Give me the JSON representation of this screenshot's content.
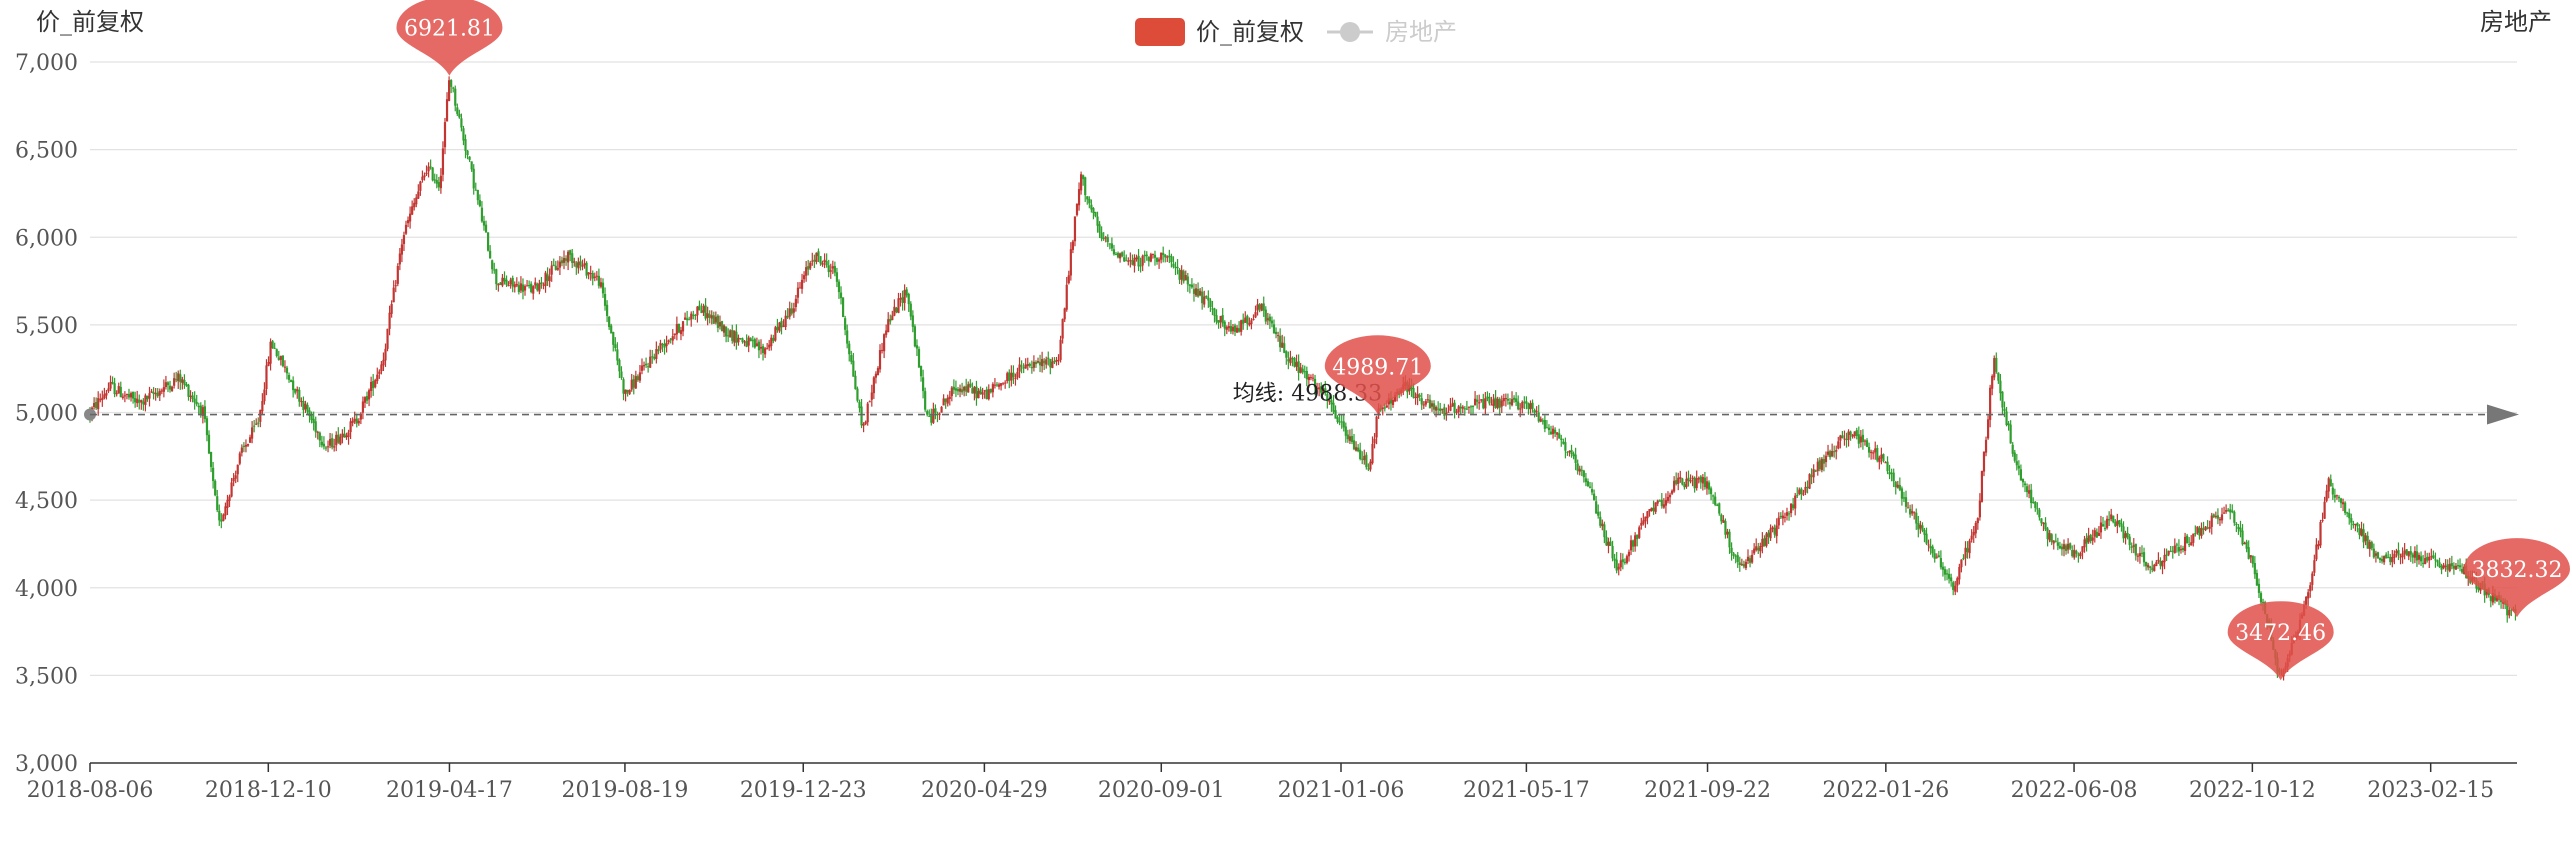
{
  "chart_data": {
    "type": "candlestick",
    "title": "",
    "y_axis_name_left": "价_前复权",
    "y_axis_name_right": "房地产",
    "legend": [
      {
        "name": "价_前复权",
        "color": "#dd4b39",
        "active": true
      },
      {
        "name": "房地产",
        "color": "#cccccc",
        "active": false
      }
    ],
    "legend_placement": "top-center",
    "ylim": [
      3000,
      7000
    ],
    "y_ticks": [
      3000,
      3500,
      4000,
      4500,
      5000,
      5500,
      6000,
      6500,
      7000
    ],
    "y_tick_labels": [
      "3,000",
      "3,500",
      "4,000",
      "4,500",
      "5,000",
      "5,500",
      "6,000",
      "6,500",
      "7,000"
    ],
    "x_tick_labels": [
      "2018-08-06",
      "2018-12-10",
      "2019-04-17",
      "2019-08-19",
      "2019-12-23",
      "2020-04-29",
      "2020-09-01",
      "2021-01-06",
      "2021-05-17",
      "2021-09-22",
      "2022-01-26",
      "2022-06-08",
      "2022-10-12",
      "2023-02-15"
    ],
    "x_range": [
      "2018-08-06",
      "2023-04-17"
    ],
    "grid_horizontal": true,
    "up_color": "#c23531",
    "down_color": "#2f9e2f",
    "mark_points": [
      {
        "label": "6921.81",
        "date": "2019-04-17",
        "value": 6921.81
      },
      {
        "label": "4989.71",
        "date": "2021-02-01",
        "value": 4989.71
      },
      {
        "label": "3472.46",
        "date": "2022-11-01",
        "value": 3472.46
      },
      {
        "label": "3832.32",
        "date": "2023-04-17",
        "value": 3832.32
      }
    ],
    "mark_line": {
      "label": "均线: 4988.33",
      "value": 4988.33
    },
    "anchors": [
      [
        "2018-08-06",
        5000
      ],
      [
        "2018-08-20",
        5150
      ],
      [
        "2018-09-10",
        5050
      ],
      [
        "2018-10-08",
        5200
      ],
      [
        "2018-10-25",
        5000
      ],
      [
        "2018-11-05",
        4350
      ],
      [
        "2018-11-20",
        4750
      ],
      [
        "2018-12-03",
        4950
      ],
      [
        "2018-12-12",
        5400
      ],
      [
        "2018-12-28",
        5150
      ],
      [
        "2019-01-20",
        4800
      ],
      [
        "2019-02-10",
        4950
      ],
      [
        "2019-03-01",
        5300
      ],
      [
        "2019-03-15",
        6000
      ],
      [
        "2019-04-01",
        6400
      ],
      [
        "2019-04-10",
        6300
      ],
      [
        "2019-04-17",
        6920
      ],
      [
        "2019-04-26",
        6600
      ],
      [
        "2019-05-10",
        6100
      ],
      [
        "2019-05-20",
        5750
      ],
      [
        "2019-06-15",
        5700
      ],
      [
        "2019-07-10",
        5900
      ],
      [
        "2019-08-01",
        5750
      ],
      [
        "2019-08-19",
        5100
      ],
      [
        "2019-09-10",
        5350
      ],
      [
        "2019-10-10",
        5600
      ],
      [
        "2019-11-01",
        5450
      ],
      [
        "2019-11-25",
        5350
      ],
      [
        "2019-12-15",
        5600
      ],
      [
        "2019-12-30",
        5900
      ],
      [
        "2020-01-15",
        5800
      ],
      [
        "2020-02-03",
        4900
      ],
      [
        "2020-02-20",
        5500
      ],
      [
        "2020-03-05",
        5700
      ],
      [
        "2020-03-20",
        4950
      ],
      [
        "2020-04-10",
        5150
      ],
      [
        "2020-04-29",
        5100
      ],
      [
        "2020-05-25",
        5250
      ],
      [
        "2020-06-20",
        5300
      ],
      [
        "2020-07-06",
        6350
      ],
      [
        "2020-07-20",
        6000
      ],
      [
        "2020-08-10",
        5850
      ],
      [
        "2020-09-01",
        5900
      ],
      [
        "2020-09-25",
        5700
      ],
      [
        "2020-10-20",
        5450
      ],
      [
        "2020-11-10",
        5600
      ],
      [
        "2020-12-01",
        5300
      ],
      [
        "2020-12-25",
        5100
      ],
      [
        "2021-01-15",
        4800
      ],
      [
        "2021-01-26",
        4700
      ],
      [
        "2021-02-01",
        4990
      ],
      [
        "2021-02-20",
        5150
      ],
      [
        "2021-03-15",
        5000
      ],
      [
        "2021-04-10",
        5050
      ],
      [
        "2021-05-17",
        5050
      ],
      [
        "2021-06-10",
        4850
      ],
      [
        "2021-07-01",
        4550
      ],
      [
        "2021-07-20",
        4100
      ],
      [
        "2021-08-10",
        4400
      ],
      [
        "2021-09-01",
        4600
      ],
      [
        "2021-09-22",
        4600
      ],
      [
        "2021-10-15",
        4100
      ],
      [
        "2021-11-10",
        4350
      ],
      [
        "2021-12-10",
        4700
      ],
      [
        "2022-01-01",
        4900
      ],
      [
        "2022-01-26",
        4700
      ],
      [
        "2022-03-15",
        4000
      ],
      [
        "2022-04-01",
        4400
      ],
      [
        "2022-04-12",
        5300
      ],
      [
        "2022-04-28",
        4700
      ],
      [
        "2022-05-20",
        4300
      ],
      [
        "2022-06-08",
        4200
      ],
      [
        "2022-07-05",
        4400
      ],
      [
        "2022-08-01",
        4100
      ],
      [
        "2022-09-01",
        4300
      ],
      [
        "2022-09-25",
        4450
      ],
      [
        "2022-10-12",
        4150
      ],
      [
        "2022-11-01",
        3480
      ],
      [
        "2022-11-20",
        3950
      ],
      [
        "2022-12-05",
        4600
      ],
      [
        "2022-12-20",
        4400
      ],
      [
        "2023-01-10",
        4150
      ],
      [
        "2023-01-30",
        4200
      ],
      [
        "2023-02-15",
        4150
      ],
      [
        "2023-03-10",
        4100
      ],
      [
        "2023-03-30",
        3950
      ],
      [
        "2023-04-17",
        3830
      ]
    ]
  }
}
